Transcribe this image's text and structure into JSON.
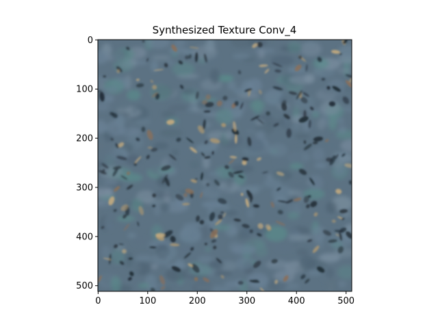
{
  "figure": {
    "title": "Synthesized Texture Conv_4",
    "image_name": "synthesized-texture-image",
    "texture_palette": [
      "#5c7283",
      "#6a8296",
      "#4e6373",
      "#7b8fa0",
      "#1e2a33",
      "#2b3640",
      "#a89572",
      "#c3aa7f",
      "#5a8a8a",
      "#8a6f5a"
    ]
  },
  "axes": {
    "x_range": [
      0,
      511
    ],
    "y_range": [
      0,
      511
    ],
    "y_inverted": true,
    "x_ticks": [
      {
        "value": 0,
        "label": "0"
      },
      {
        "value": 100,
        "label": "100"
      },
      {
        "value": 200,
        "label": "200"
      },
      {
        "value": 300,
        "label": "300"
      },
      {
        "value": 400,
        "label": "400"
      },
      {
        "value": 500,
        "label": "500"
      }
    ],
    "y_ticks": [
      {
        "value": 0,
        "label": "0"
      },
      {
        "value": 100,
        "label": "100"
      },
      {
        "value": 200,
        "label": "200"
      },
      {
        "value": 300,
        "label": "300"
      },
      {
        "value": 400,
        "label": "400"
      },
      {
        "value": 500,
        "label": "500"
      }
    ]
  }
}
